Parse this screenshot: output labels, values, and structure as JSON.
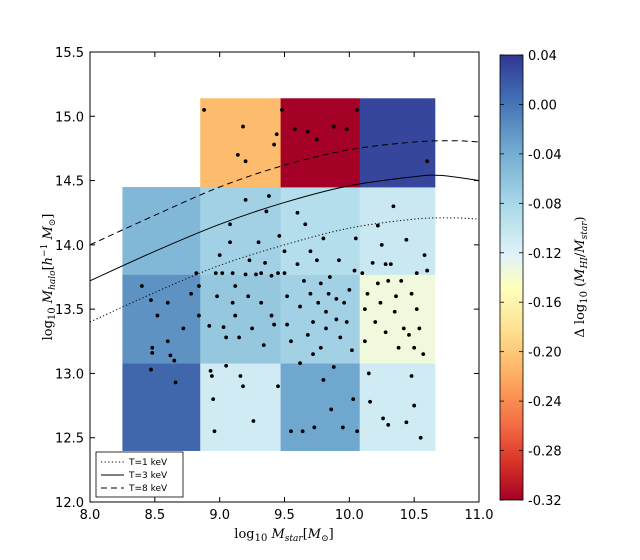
{
  "chart_data": {
    "type": "heatmap",
    "title": "",
    "xlabel": "log10 M_star [M_⊙]",
    "ylabel": "log10 M_halo [h^-1 M_⊙]",
    "xlim": [
      8.0,
      11.0
    ],
    "ylim": [
      12.0,
      15.5
    ],
    "x_ticks": [
      "8.0",
      "8.5",
      "9.0",
      "9.5",
      "10.0",
      "10.5",
      "11.0"
    ],
    "y_ticks": [
      "12.0",
      "12.5",
      "13.0",
      "13.5",
      "14.0",
      "14.5",
      "15.0",
      "15.5"
    ],
    "grid": false,
    "colorbar": {
      "label": "Δ log10 (M_HI / M_star)",
      "range": [
        -0.32,
        0.04
      ],
      "ticks": [
        "0.04",
        "0.00",
        "-0.04",
        "-0.08",
        "-0.12",
        "-0.16",
        "-0.20",
        "-0.24",
        "-0.28",
        "-0.32"
      ]
    },
    "cells": [
      {
        "x0": 8.25,
        "x1": 8.85,
        "y0": 12.4,
        "y1": 13.08,
        "value": 0.01
      },
      {
        "x0": 8.25,
        "x1": 8.85,
        "y0": 13.08,
        "y1": 13.77,
        "value": -0.02
      },
      {
        "x0": 8.25,
        "x1": 8.85,
        "y0": 13.77,
        "y1": 14.45,
        "value": -0.05
      },
      {
        "x0": 8.85,
        "x1": 9.47,
        "y0": 12.4,
        "y1": 13.08,
        "value": -0.11
      },
      {
        "x0": 8.85,
        "x1": 9.47,
        "y0": 13.08,
        "y1": 13.77,
        "value": -0.065
      },
      {
        "x0": 8.85,
        "x1": 9.47,
        "y0": 13.77,
        "y1": 14.45,
        "value": -0.075
      },
      {
        "x0": 8.85,
        "x1": 9.47,
        "y0": 14.45,
        "y1": 15.14,
        "value": -0.21
      },
      {
        "x0": 9.47,
        "x1": 10.08,
        "y0": 12.4,
        "y1": 13.08,
        "value": -0.035
      },
      {
        "x0": 9.47,
        "x1": 10.08,
        "y0": 13.08,
        "y1": 13.77,
        "value": -0.075
      },
      {
        "x0": 9.47,
        "x1": 10.08,
        "y0": 13.77,
        "y1": 14.45,
        "value": -0.09
      },
      {
        "x0": 9.47,
        "x1": 10.08,
        "y0": 14.45,
        "y1": 15.14,
        "value": -0.32
      },
      {
        "x0": 10.08,
        "x1": 10.66,
        "y0": 12.4,
        "y1": 13.08,
        "value": -0.11
      },
      {
        "x0": 10.08,
        "x1": 10.66,
        "y0": 13.08,
        "y1": 13.77,
        "value": -0.135
      },
      {
        "x0": 10.08,
        "x1": 10.66,
        "y0": 13.77,
        "y1": 14.45,
        "value": -0.105
      },
      {
        "x0": 10.08,
        "x1": 10.66,
        "y0": 14.45,
        "y1": 15.14,
        "value": 0.03
      }
    ],
    "legend": {
      "placement": "lower-left",
      "entries": [
        {
          "label": "T=1 keV",
          "style": "dotted"
        },
        {
          "label": "T=3 keV",
          "style": "solid"
        },
        {
          "label": "T=8 keV",
          "style": "dashed"
        }
      ]
    },
    "curves": [
      {
        "name": "T=1 keV",
        "style": "dotted",
        "x": [
          8.0,
          8.5,
          9.0,
          9.5,
          10.0,
          10.5,
          10.8,
          11.0
        ],
        "y": [
          13.4,
          13.63,
          13.84,
          14.0,
          14.13,
          14.2,
          14.21,
          14.2
        ]
      },
      {
        "name": "T=3 keV",
        "style": "solid",
        "x": [
          8.0,
          8.5,
          9.0,
          9.5,
          10.0,
          10.5,
          10.7,
          11.0
        ],
        "y": [
          13.72,
          13.95,
          14.16,
          14.33,
          14.46,
          14.53,
          14.54,
          14.5
        ]
      },
      {
        "name": "T=8 keV",
        "style": "dashed",
        "x": [
          8.0,
          8.5,
          9.0,
          9.5,
          10.0,
          10.5,
          10.8,
          11.0
        ],
        "y": [
          14.0,
          14.23,
          14.45,
          14.62,
          14.74,
          14.8,
          14.81,
          14.8
        ]
      }
    ],
    "points": [
      [
        8.4,
        13.68
      ],
      [
        8.47,
        13.57
      ],
      [
        8.52,
        13.45
      ],
      [
        8.48,
        13.2
      ],
      [
        8.48,
        13.16
      ],
      [
        8.47,
        13.03
      ],
      [
        8.6,
        13.55
      ],
      [
        8.6,
        13.25
      ],
      [
        8.62,
        13.14
      ],
      [
        8.65,
        13.1
      ],
      [
        8.66,
        12.93
      ],
      [
        8.72,
        13.35
      ],
      [
        8.78,
        13.62
      ],
      [
        8.82,
        13.78
      ],
      [
        8.84,
        13.68
      ],
      [
        8.84,
        13.45
      ],
      [
        8.88,
        15.05
      ],
      [
        8.92,
        13.37
      ],
      [
        8.93,
        13.02
      ],
      [
        8.94,
        12.98
      ],
      [
        8.95,
        12.8
      ],
      [
        8.96,
        12.55
      ],
      [
        8.97,
        13.78
      ],
      [
        8.98,
        13.6
      ],
      [
        9.0,
        13.92
      ],
      [
        9.02,
        13.78
      ],
      [
        9.03,
        13.36
      ],
      [
        9.05,
        13.28
      ],
      [
        9.05,
        13.06
      ],
      [
        9.08,
        14.02
      ],
      [
        9.08,
        14.16
      ],
      [
        9.1,
        13.78
      ],
      [
        9.1,
        13.55
      ],
      [
        9.12,
        13.68
      ],
      [
        9.12,
        13.45
      ],
      [
        9.14,
        14.7
      ],
      [
        9.15,
        13.28
      ],
      [
        9.16,
        12.98
      ],
      [
        9.18,
        12.9
      ],
      [
        9.18,
        14.92
      ],
      [
        9.2,
        13.77
      ],
      [
        9.2,
        14.35
      ],
      [
        9.2,
        14.65
      ],
      [
        9.22,
        13.6
      ],
      [
        9.23,
        13.88
      ],
      [
        9.25,
        13.35
      ],
      [
        9.26,
        12.63
      ],
      [
        9.28,
        13.77
      ],
      [
        9.3,
        14.02
      ],
      [
        9.32,
        13.78
      ],
      [
        9.32,
        13.55
      ],
      [
        9.34,
        13.22
      ],
      [
        9.35,
        13.86
      ],
      [
        9.36,
        14.26
      ],
      [
        9.38,
        14.38
      ],
      [
        9.4,
        13.76
      ],
      [
        9.4,
        13.45
      ],
      [
        9.42,
        13.38
      ],
      [
        9.42,
        14.78
      ],
      [
        9.44,
        14.86
      ],
      [
        9.45,
        13.78
      ],
      [
        9.46,
        14.07
      ],
      [
        9.45,
        12.9
      ],
      [
        9.48,
        15.05
      ],
      [
        9.5,
        13.78
      ],
      [
        9.5,
        13.95
      ],
      [
        9.52,
        13.6
      ],
      [
        9.52,
        13.38
      ],
      [
        9.55,
        13.25
      ],
      [
        9.55,
        12.55
      ],
      [
        9.58,
        14.9
      ],
      [
        9.6,
        13.85
      ],
      [
        9.6,
        14.25
      ],
      [
        9.62,
        13.52
      ],
      [
        9.62,
        13.08
      ],
      [
        9.64,
        12.55
      ],
      [
        9.65,
        13.72
      ],
      [
        9.66,
        14.16
      ],
      [
        9.68,
        13.3
      ],
      [
        9.68,
        14.88
      ],
      [
        9.7,
        13.95
      ],
      [
        9.7,
        13.62
      ],
      [
        9.72,
        13.4
      ],
      [
        9.72,
        13.15
      ],
      [
        9.73,
        12.58
      ],
      [
        9.75,
        13.88
      ],
      [
        9.75,
        14.82
      ],
      [
        9.76,
        13.55
      ],
      [
        9.78,
        13.7
      ],
      [
        9.78,
        13.2
      ],
      [
        9.8,
        14.05
      ],
      [
        9.8,
        12.95
      ],
      [
        9.82,
        13.35
      ],
      [
        9.82,
        13.48
      ],
      [
        9.84,
        13.62
      ],
      [
        9.85,
        13.75
      ],
      [
        9.86,
        12.72
      ],
      [
        9.88,
        13.05
      ],
      [
        9.88,
        14.92
      ],
      [
        9.9,
        13.42
      ],
      [
        9.9,
        13.58
      ],
      [
        9.92,
        13.88
      ],
      [
        9.93,
        13.28
      ],
      [
        9.95,
        12.58
      ],
      [
        9.96,
        13.55
      ],
      [
        9.98,
        13.4
      ],
      [
        9.98,
        14.9
      ],
      [
        10.0,
        13.65
      ],
      [
        10.02,
        13.18
      ],
      [
        10.03,
        12.8
      ],
      [
        10.04,
        13.8
      ],
      [
        10.05,
        14.05
      ],
      [
        10.06,
        15.05
      ],
      [
        10.06,
        12.55
      ],
      [
        10.1,
        13.78
      ],
      [
        10.12,
        13.5
      ],
      [
        10.12,
        13.25
      ],
      [
        10.14,
        13.62
      ],
      [
        10.15,
        13.0
      ],
      [
        10.16,
        12.78
      ],
      [
        10.18,
        13.86
      ],
      [
        10.2,
        13.4
      ],
      [
        10.22,
        13.7
      ],
      [
        10.22,
        14.15
      ],
      [
        10.24,
        13.55
      ],
      [
        10.25,
        14.0
      ],
      [
        10.26,
        12.65
      ],
      [
        10.28,
        13.32
      ],
      [
        10.28,
        13.85
      ],
      [
        10.3,
        13.72
      ],
      [
        10.3,
        12.6
      ],
      [
        10.32,
        13.85
      ],
      [
        10.34,
        14.3
      ],
      [
        10.35,
        13.48
      ],
      [
        10.36,
        13.6
      ],
      [
        10.38,
        13.2
      ],
      [
        10.4,
        13.72
      ],
      [
        10.42,
        13.35
      ],
      [
        10.44,
        12.62
      ],
      [
        10.44,
        14.04
      ],
      [
        10.46,
        13.3
      ],
      [
        10.48,
        13.62
      ],
      [
        10.48,
        12.98
      ],
      [
        10.5,
        13.2
      ],
      [
        10.5,
        12.75
      ],
      [
        10.52,
        13.5
      ],
      [
        10.52,
        13.78
      ],
      [
        10.54,
        13.35
      ],
      [
        10.55,
        12.5
      ],
      [
        10.57,
        13.15
      ],
      [
        10.58,
        13.92
      ],
      [
        10.6,
        14.65
      ],
      [
        10.6,
        13.8
      ]
    ]
  }
}
